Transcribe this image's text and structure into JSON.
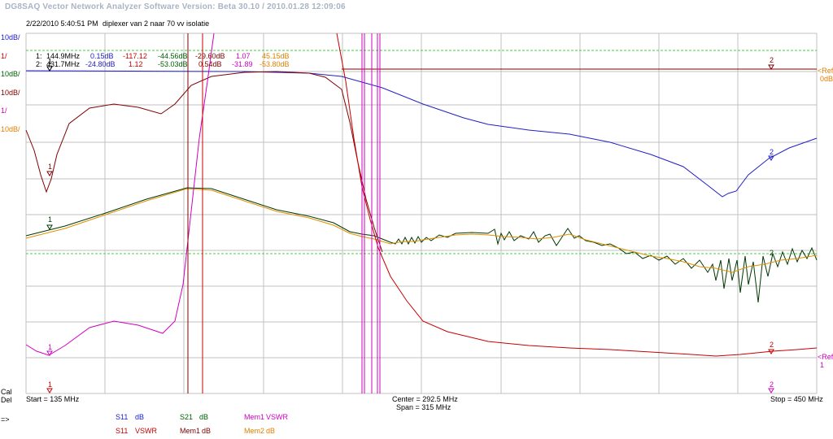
{
  "header": {
    "title": "DG8SAQ Vector Network Analyzer Software   Version:  Beta 30.10 / 2010.01.28 12:09:06",
    "date": "2/22/2010   5:40:51 PM",
    "comment": "diplexer van 2 naar 70 vv isolatie"
  },
  "scale_labels": {
    "s1": "10dB/",
    "s2": "1/",
    "s3": "10dB/",
    "s4": "10dB/",
    "s5": "1/",
    "s6": "10dB/"
  },
  "ref_labels": {
    "ref1": "<Ref",
    "ref1_val": "0dB",
    "ref2": "<Ref",
    "ref2_val": "1"
  },
  "markers_readout": {
    "row1": {
      "idx": "1:",
      "freq": "144.9MHz",
      "v1": "0.15dB",
      "v2": "-117.12",
      "v3": "-44.56dB",
      "v4": "-29.60dB",
      "v5": "1.07",
      "v6": "45.15dB"
    },
    "row2": {
      "idx": "2:",
      "freq": "431.7MHz",
      "v1": "-24.80dB",
      "v2": "1.12",
      "v3": "-53.03dB",
      "v4": "0.54dB",
      "v5": "-31.89",
      "v6": "-53.80dB"
    }
  },
  "bottom": {
    "cal": "Cal",
    "del": "Del",
    "start": "Start = 135 MHz",
    "center": "Center = 292.5 MHz",
    "span": "Span = 315 MHz",
    "stop": "Stop = 450 MHz",
    "arrow": "=>"
  },
  "legend": [
    {
      "trace": "S11",
      "unit": "dB",
      "color": "#2020c8"
    },
    {
      "trace": "S11",
      "unit": "VSWR",
      "color": "#c80000"
    },
    {
      "trace": "S21",
      "unit": "dB",
      "color": "#006000"
    },
    {
      "trace": "Mem1",
      "unit": "dB",
      "color": "#800000"
    },
    {
      "trace": "Mem1",
      "unit": "VSWR",
      "color": "#d000c0"
    },
    {
      "trace": "Mem2",
      "unit": "dB",
      "color": "#e08000"
    }
  ],
  "marker_labels": {
    "m1": "1",
    "m2": "2"
  },
  "colors": {
    "grid": "#c0c0c0",
    "s11_db": "#2020c8",
    "s11_vswr": "#c80000",
    "s21_db": "#003800",
    "mem1_db": "#800000",
    "mem1_vswr": "#d000c0",
    "mem2_db": "#e09000",
    "limit": "#40d040"
  }
}
